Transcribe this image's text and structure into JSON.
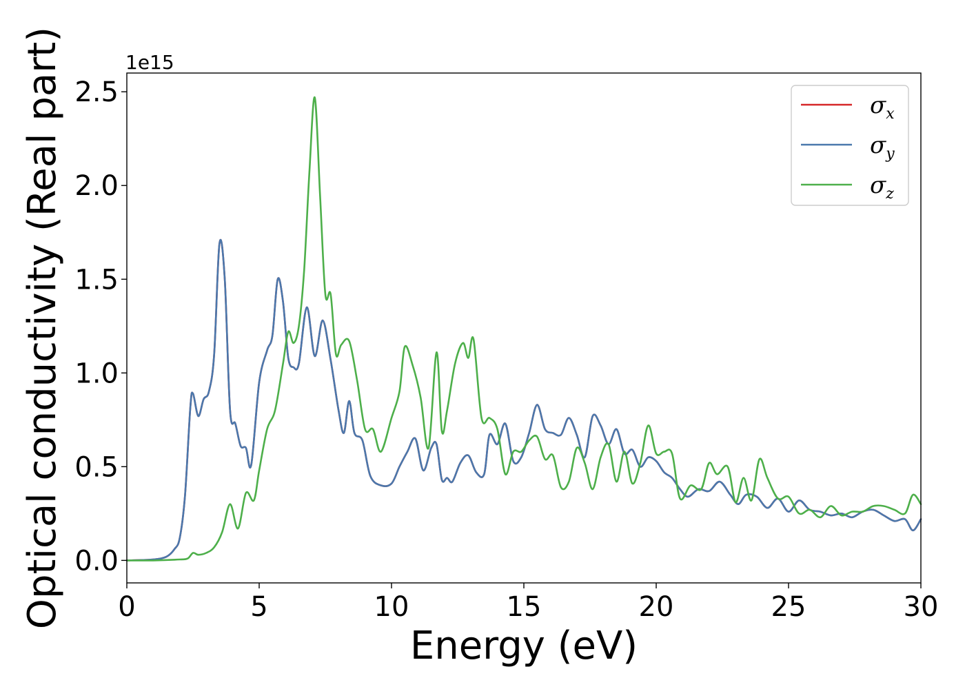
{
  "chart_data": {
    "type": "line",
    "xlabel": "Energy (eV)",
    "ylabel": "Optical conductivity (Real part)",
    "y_offset_label": "1e15",
    "xlim": [
      0,
      30
    ],
    "ylim": [
      -0.12,
      2.6
    ],
    "x_ticks": [
      0,
      5,
      10,
      15,
      20,
      25,
      30
    ],
    "x_tick_labels": [
      "0",
      "5",
      "10",
      "15",
      "20",
      "25",
      "30"
    ],
    "y_ticks": [
      0.0,
      0.5,
      1.0,
      1.5,
      2.0,
      2.5
    ],
    "y_tick_labels": [
      "0.0",
      "0.5",
      "1.0",
      "1.5",
      "2.0",
      "2.5"
    ],
    "grid": false,
    "legend_position": "top-right",
    "series": [
      {
        "name": "σx",
        "symbol": "σ",
        "subscript": "x",
        "color": "#d62728",
        "x": [
          0,
          1,
          1.5,
          1.8,
          2.0,
          2.2,
          2.4,
          2.5,
          2.7,
          2.9,
          3.1,
          3.3,
          3.5,
          3.7,
          3.9,
          4.1,
          4.3,
          4.5,
          4.7,
          5.0,
          5.3,
          5.5,
          5.7,
          5.9,
          6.1,
          6.3,
          6.5,
          6.8,
          7.1,
          7.4,
          7.7,
          8.0,
          8.2,
          8.4,
          8.6,
          8.9,
          9.2,
          9.6,
          10.0,
          10.3,
          10.6,
          10.9,
          11.2,
          11.5,
          11.7,
          11.9,
          12.1,
          12.3,
          12.6,
          12.9,
          13.2,
          13.5,
          13.7,
          14.0,
          14.3,
          14.6,
          14.9,
          15.2,
          15.5,
          15.8,
          16.1,
          16.4,
          16.7,
          17.0,
          17.3,
          17.6,
          17.9,
          18.2,
          18.5,
          18.8,
          19.1,
          19.4,
          19.7,
          20.0,
          20.3,
          20.6,
          20.9,
          21.2,
          21.6,
          22.0,
          22.4,
          22.8,
          23.1,
          23.4,
          23.8,
          24.2,
          24.6,
          25.0,
          25.4,
          25.8,
          26.2,
          26.6,
          27.0,
          27.4,
          27.8,
          28.2,
          28.6,
          29.0,
          29.4,
          29.7,
          30.0
        ],
        "y": [
          0.0,
          0.005,
          0.02,
          0.06,
          0.12,
          0.35,
          0.82,
          0.89,
          0.77,
          0.86,
          0.9,
          1.1,
          1.69,
          1.5,
          0.8,
          0.73,
          0.61,
          0.6,
          0.51,
          0.95,
          1.12,
          1.2,
          1.5,
          1.38,
          1.08,
          1.03,
          1.05,
          1.35,
          1.09,
          1.28,
          1.07,
          0.8,
          0.68,
          0.85,
          0.68,
          0.64,
          0.45,
          0.4,
          0.41,
          0.5,
          0.58,
          0.65,
          0.48,
          0.6,
          0.62,
          0.43,
          0.44,
          0.42,
          0.52,
          0.56,
          0.47,
          0.46,
          0.67,
          0.62,
          0.73,
          0.53,
          0.55,
          0.68,
          0.83,
          0.7,
          0.68,
          0.67,
          0.76,
          0.67,
          0.55,
          0.77,
          0.72,
          0.62,
          0.7,
          0.57,
          0.59,
          0.5,
          0.55,
          0.53,
          0.47,
          0.44,
          0.38,
          0.34,
          0.38,
          0.37,
          0.42,
          0.35,
          0.3,
          0.35,
          0.34,
          0.28,
          0.33,
          0.26,
          0.32,
          0.27,
          0.26,
          0.24,
          0.25,
          0.23,
          0.26,
          0.27,
          0.24,
          0.21,
          0.22,
          0.16,
          0.22
        ]
      },
      {
        "name": "σy",
        "symbol": "σ",
        "subscript": "y",
        "color": "#4a78ac",
        "x": [
          0,
          1,
          1.5,
          1.8,
          2.0,
          2.2,
          2.4,
          2.5,
          2.7,
          2.9,
          3.1,
          3.3,
          3.5,
          3.7,
          3.9,
          4.1,
          4.3,
          4.5,
          4.7,
          5.0,
          5.3,
          5.5,
          5.7,
          5.9,
          6.1,
          6.3,
          6.5,
          6.8,
          7.1,
          7.4,
          7.7,
          8.0,
          8.2,
          8.4,
          8.6,
          8.9,
          9.2,
          9.6,
          10.0,
          10.3,
          10.6,
          10.9,
          11.2,
          11.5,
          11.7,
          11.9,
          12.1,
          12.3,
          12.6,
          12.9,
          13.2,
          13.5,
          13.7,
          14.0,
          14.3,
          14.6,
          14.9,
          15.2,
          15.5,
          15.8,
          16.1,
          16.4,
          16.7,
          17.0,
          17.3,
          17.6,
          17.9,
          18.2,
          18.5,
          18.8,
          19.1,
          19.4,
          19.7,
          20.0,
          20.3,
          20.6,
          20.9,
          21.2,
          21.6,
          22.0,
          22.4,
          22.8,
          23.1,
          23.4,
          23.8,
          24.2,
          24.6,
          25.0,
          25.4,
          25.8,
          26.2,
          26.6,
          27.0,
          27.4,
          27.8,
          28.2,
          28.6,
          29.0,
          29.4,
          29.7,
          30.0
        ],
        "y": [
          0.0,
          0.005,
          0.02,
          0.06,
          0.12,
          0.35,
          0.82,
          0.89,
          0.77,
          0.86,
          0.9,
          1.1,
          1.69,
          1.5,
          0.8,
          0.73,
          0.61,
          0.6,
          0.51,
          0.95,
          1.12,
          1.2,
          1.5,
          1.38,
          1.08,
          1.03,
          1.05,
          1.35,
          1.09,
          1.28,
          1.07,
          0.8,
          0.68,
          0.85,
          0.68,
          0.64,
          0.45,
          0.4,
          0.41,
          0.5,
          0.58,
          0.65,
          0.48,
          0.6,
          0.62,
          0.43,
          0.44,
          0.42,
          0.52,
          0.56,
          0.47,
          0.46,
          0.67,
          0.62,
          0.73,
          0.53,
          0.55,
          0.68,
          0.83,
          0.7,
          0.68,
          0.67,
          0.76,
          0.67,
          0.55,
          0.77,
          0.72,
          0.62,
          0.7,
          0.57,
          0.59,
          0.5,
          0.55,
          0.53,
          0.47,
          0.44,
          0.38,
          0.34,
          0.38,
          0.37,
          0.42,
          0.35,
          0.3,
          0.35,
          0.34,
          0.28,
          0.33,
          0.26,
          0.32,
          0.27,
          0.26,
          0.24,
          0.25,
          0.23,
          0.26,
          0.27,
          0.24,
          0.21,
          0.22,
          0.16,
          0.22
        ]
      },
      {
        "name": "σz",
        "symbol": "σ",
        "subscript": "z",
        "color": "#4daf4a",
        "x": [
          0,
          1,
          2.0,
          2.3,
          2.5,
          2.7,
          3.0,
          3.3,
          3.6,
          3.9,
          4.2,
          4.5,
          4.8,
          5.0,
          5.3,
          5.6,
          5.9,
          6.1,
          6.3,
          6.5,
          6.7,
          6.9,
          7.1,
          7.3,
          7.5,
          7.7,
          7.9,
          8.1,
          8.4,
          8.7,
          9.0,
          9.3,
          9.6,
          10.0,
          10.3,
          10.5,
          10.8,
          11.1,
          11.4,
          11.7,
          11.9,
          12.1,
          12.4,
          12.7,
          12.9,
          13.1,
          13.4,
          13.7,
          14.0,
          14.3,
          14.6,
          14.9,
          15.2,
          15.5,
          15.8,
          16.1,
          16.4,
          16.7,
          17.0,
          17.3,
          17.6,
          17.9,
          18.2,
          18.5,
          18.8,
          19.1,
          19.4,
          19.7,
          20.0,
          20.3,
          20.6,
          20.9,
          21.3,
          21.7,
          22.0,
          22.3,
          22.7,
          23.0,
          23.3,
          23.6,
          23.9,
          24.2,
          24.6,
          25.0,
          25.4,
          25.8,
          26.2,
          26.6,
          27.0,
          27.4,
          27.8,
          28.2,
          28.6,
          29.0,
          29.4,
          29.7,
          30.0
        ],
        "y": [
          0.0,
          0.0,
          0.005,
          0.01,
          0.04,
          0.03,
          0.04,
          0.07,
          0.15,
          0.3,
          0.17,
          0.36,
          0.32,
          0.48,
          0.7,
          0.8,
          1.05,
          1.22,
          1.16,
          1.25,
          1.55,
          2.08,
          2.47,
          1.95,
          1.42,
          1.42,
          1.1,
          1.15,
          1.17,
          0.96,
          0.7,
          0.7,
          0.58,
          0.76,
          0.9,
          1.14,
          1.04,
          0.87,
          0.6,
          1.11,
          0.69,
          0.8,
          1.05,
          1.16,
          1.08,
          1.18,
          0.76,
          0.76,
          0.7,
          0.46,
          0.58,
          0.58,
          0.64,
          0.66,
          0.54,
          0.56,
          0.39,
          0.42,
          0.6,
          0.52,
          0.38,
          0.55,
          0.62,
          0.42,
          0.58,
          0.41,
          0.52,
          0.72,
          0.57,
          0.58,
          0.57,
          0.33,
          0.4,
          0.38,
          0.52,
          0.46,
          0.5,
          0.31,
          0.44,
          0.32,
          0.54,
          0.44,
          0.33,
          0.34,
          0.25,
          0.27,
          0.23,
          0.29,
          0.24,
          0.26,
          0.26,
          0.29,
          0.29,
          0.27,
          0.25,
          0.35,
          0.3
        ]
      }
    ]
  }
}
